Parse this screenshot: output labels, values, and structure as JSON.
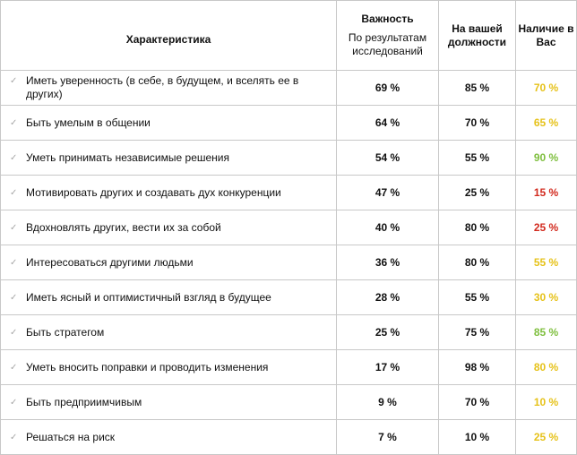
{
  "header": {
    "characteristic": "Характеристика",
    "importance": "Важность",
    "importance_sub": "По результатам исследований",
    "position": "На вашей должности",
    "presence": "Наличие в Вас"
  },
  "rows": [
    {
      "feature": "Иметь уверенность (в себе, в будущем, и вселять ее в других)",
      "importance": "69 %",
      "position": "85 %",
      "presence": "70 %",
      "presence_color": "#e6c21a"
    },
    {
      "feature": "Быть умелым в общении",
      "importance": "64 %",
      "position": "70 %",
      "presence": "65 %",
      "presence_color": "#e6c21a"
    },
    {
      "feature": "Уметь принимать независимые  решения",
      "importance": "54 %",
      "position": "55 %",
      "presence": "90 %",
      "presence_color": "#7fbf3f"
    },
    {
      "feature": "Мотивировать других и создавать дух конкуренции",
      "importance": "47 %",
      "position": "25 %",
      "presence": "15 %",
      "presence_color": "#d22a1e"
    },
    {
      "feature": "Вдохновлять других, вести их за собой",
      "importance": "40 %",
      "position": "80 %",
      "presence": "25 %",
      "presence_color": "#d22a1e"
    },
    {
      "feature": "Интересоваться другими людьми",
      "importance": "36 %",
      "position": "80 %",
      "presence": "55 %",
      "presence_color": "#e6c21a"
    },
    {
      "feature": "Иметь ясный и оптимистичный взгляд в будущее",
      "importance": "28 %",
      "position": "55 %",
      "presence": "30 %",
      "presence_color": "#e6c21a"
    },
    {
      "feature": "Быть стратегом",
      "importance": "25 %",
      "position": "75 %",
      "presence": "85 %",
      "presence_color": "#7fbf3f"
    },
    {
      "feature": "Уметь вносить поправки и проводить изменения",
      "importance": "17 %",
      "position": "98 %",
      "presence": "80 %",
      "presence_color": "#e6c21a"
    },
    {
      "feature": "Быть предприимчивым",
      "importance": "9 %",
      "position": "70 %",
      "presence": "10 %",
      "presence_color": "#e6c21a"
    },
    {
      "feature": "Решаться на риск",
      "importance": "7 %",
      "position": "10 %",
      "presence": "25 %",
      "presence_color": "#e6c21a"
    }
  ],
  "icons": {
    "check": "check-icon"
  }
}
